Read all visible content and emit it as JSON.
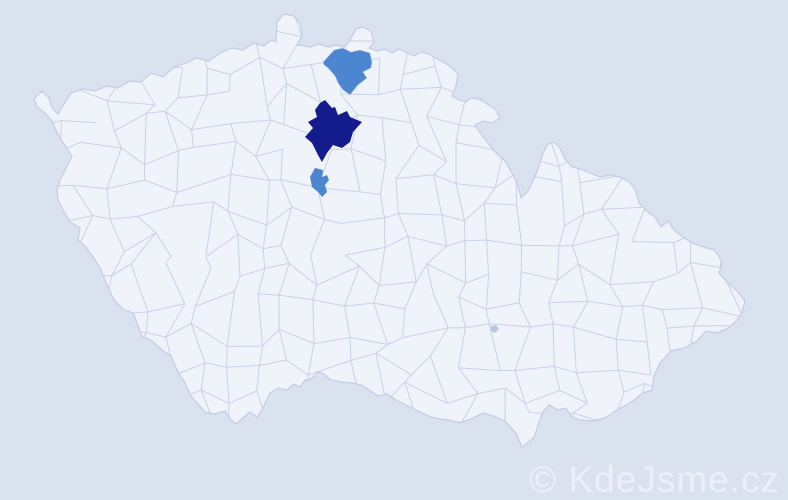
{
  "watermark": {
    "text": "© KdeJsme.cz",
    "color": "#eceff8"
  },
  "map": {
    "name": "czech-republic-districts-map",
    "colors": {
      "background": "#dbe2ef",
      "land": "#f0f3fa",
      "district_border": "#c8d1e8",
      "country_outline": "#c2cce4",
      "city_marker": "#bcc7de"
    },
    "highlighted_districts": [
      {
        "id": "district-north-blue",
        "color": "#4c86d0"
      },
      {
        "id": "district-central-navy",
        "color": "#141b8d"
      },
      {
        "id": "district-small-blue",
        "color": "#4c86d0"
      }
    ]
  }
}
